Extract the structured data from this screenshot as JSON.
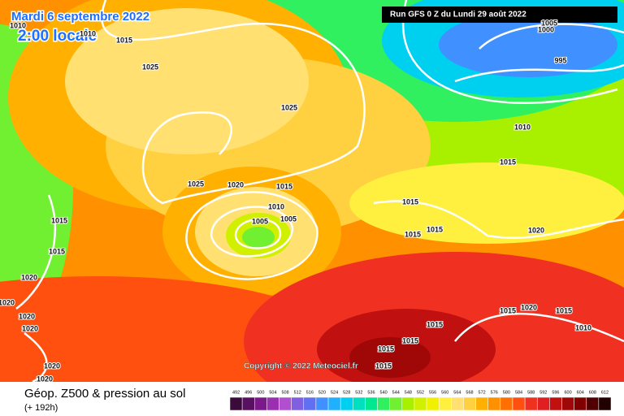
{
  "header": {
    "title": "Mardi 6 septembre 2022",
    "time": "2:00 locale",
    "run": "Run GFS 0 Z du Lundi 29 août 2022"
  },
  "copyright": "Copyright © 2022 Meteociel.fr",
  "footer": {
    "title": "Géop. Z500 & pression au sol",
    "range": "(+ 192h)"
  },
  "isobar_labels": [
    1010,
    1010,
    1015,
    1025,
    1025,
    1005,
    1000,
    995,
    1010,
    1015,
    1025,
    1020,
    1015,
    1010,
    1005,
    1005,
    1015,
    1015,
    1015,
    1020,
    1015,
    1015,
    1020,
    1020,
    1020,
    1020,
    1015,
    1020,
    1015,
    1010,
    1015,
    1015,
    1015,
    1015,
    1020,
    1020
  ],
  "legend": {
    "labels": [
      492,
      496,
      500,
      504,
      508,
      512,
      516,
      520,
      524,
      528,
      532,
      536,
      540,
      544,
      548,
      552,
      556,
      560,
      564,
      568,
      572,
      576,
      580,
      584,
      588,
      592,
      596,
      600,
      604,
      608,
      612
    ],
    "colors": [
      "#3a0a3a",
      "#5a1060",
      "#7a1a8a",
      "#9a30b0",
      "#b050d0",
      "#8060e0",
      "#6070f0",
      "#4090ff",
      "#20b0ff",
      "#00d0f0",
      "#00e0c0",
      "#00e890",
      "#30f060",
      "#70f030",
      "#a8f000",
      "#d0f000",
      "#f0f000",
      "#fff040",
      "#ffe070",
      "#ffd040",
      "#ffb000",
      "#ff9000",
      "#ff7000",
      "#ff5010",
      "#f03020",
      "#e02020",
      "#c01010",
      "#a00808",
      "#800000",
      "#500000",
      "#200000"
    ]
  }
}
